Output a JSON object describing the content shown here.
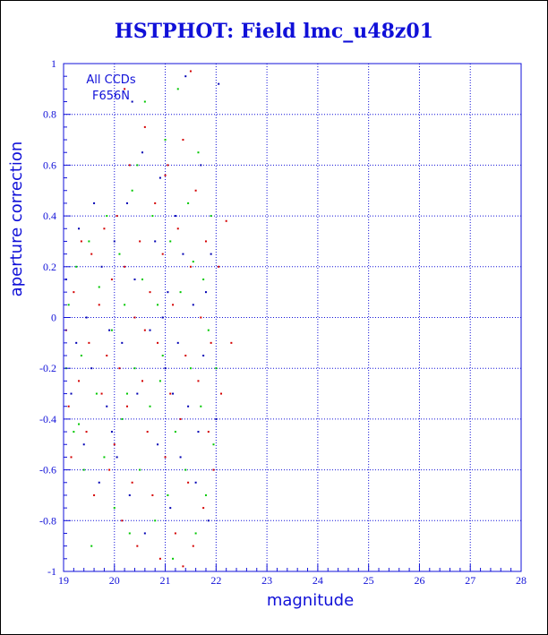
{
  "chart_data": {
    "type": "scatter",
    "title": "HSTPHOT: Field lmc_u48z01",
    "xlabel": "magnitude",
    "ylabel": "aperture correction",
    "xlim": [
      19,
      28
    ],
    "ylim": [
      -1,
      1
    ],
    "xticks": [
      "19",
      "20",
      "21",
      "22",
      "23",
      "24",
      "25",
      "26",
      "27",
      "28"
    ],
    "yticks": [
      "-1",
      "-0.8",
      "-0.6",
      "-0.4",
      "-0.2",
      "0",
      "0.2",
      "0.4",
      "0.6",
      "0.8",
      "1"
    ],
    "annotation": [
      "All CCDs",
      "F656N"
    ],
    "grid": true,
    "colors": {
      "axis": "#1010d8",
      "grid": "#1010d8",
      "background": "#ffffff"
    },
    "series": [
      {
        "color": "#d40000",
        "points": [
          [
            19.05,
            -0.05
          ],
          [
            19.1,
            -0.35
          ],
          [
            19.15,
            -0.55
          ],
          [
            19.2,
            0.1
          ],
          [
            19.3,
            -0.25
          ],
          [
            19.35,
            0.3
          ],
          [
            19.45,
            -0.45
          ],
          [
            19.5,
            -0.1
          ],
          [
            19.55,
            0.25
          ],
          [
            19.6,
            -0.7
          ],
          [
            19.7,
            0.05
          ],
          [
            19.75,
            -0.3
          ],
          [
            19.8,
            0.35
          ],
          [
            19.85,
            -0.15
          ],
          [
            19.9,
            -0.6
          ],
          [
            19.95,
            0.15
          ],
          [
            20.0,
            -0.5
          ],
          [
            20.05,
            0.4
          ],
          [
            20.1,
            -0.2
          ],
          [
            20.15,
            -0.8
          ],
          [
            20.2,
            0.2
          ],
          [
            20.25,
            -0.35
          ],
          [
            20.3,
            0.6
          ],
          [
            20.35,
            -0.65
          ],
          [
            20.4,
            0.0
          ],
          [
            20.45,
            -0.9
          ],
          [
            20.5,
            0.3
          ],
          [
            20.55,
            -0.25
          ],
          [
            20.6,
            0.75
          ],
          [
            20.65,
            -0.45
          ],
          [
            20.7,
            0.1
          ],
          [
            20.75,
            -0.7
          ],
          [
            20.8,
            0.45
          ],
          [
            20.85,
            -0.1
          ],
          [
            20.9,
            -0.95
          ],
          [
            20.95,
            0.25
          ],
          [
            21.0,
            -0.55
          ],
          [
            21.05,
            0.6
          ],
          [
            21.1,
            -0.3
          ],
          [
            21.15,
            0.05
          ],
          [
            21.2,
            -0.85
          ],
          [
            21.25,
            0.35
          ],
          [
            21.3,
            -0.4
          ],
          [
            21.35,
            0.7
          ],
          [
            21.4,
            -0.15
          ],
          [
            21.45,
            -0.65
          ],
          [
            21.5,
            0.2
          ],
          [
            21.55,
            -0.9
          ],
          [
            21.6,
            0.5
          ],
          [
            21.65,
            -0.25
          ],
          [
            21.7,
            0.0
          ],
          [
            21.75,
            -0.75
          ],
          [
            21.8,
            0.3
          ],
          [
            21.85,
            -0.45
          ],
          [
            21.9,
            -0.1
          ],
          [
            21.95,
            -0.6
          ],
          [
            22.05,
            0.2
          ],
          [
            22.1,
            -0.3
          ],
          [
            22.2,
            0.38
          ],
          [
            22.3,
            -0.1
          ],
          [
            20.6,
            -0.05
          ],
          [
            21.35,
            -0.98
          ],
          [
            20.2,
            0.9
          ],
          [
            21.5,
            0.97
          ],
          [
            21.0,
            0.56
          ]
        ]
      },
      {
        "color": "#00c800",
        "points": [
          [
            19.05,
            -0.2
          ],
          [
            19.1,
            0.05
          ],
          [
            19.2,
            -0.45
          ],
          [
            19.25,
            0.2
          ],
          [
            19.35,
            -0.15
          ],
          [
            19.4,
            -0.6
          ],
          [
            19.5,
            0.3
          ],
          [
            19.55,
            -0.9
          ],
          [
            19.65,
            -0.3
          ],
          [
            19.7,
            0.12
          ],
          [
            19.8,
            -0.55
          ],
          [
            19.85,
            0.4
          ],
          [
            19.95,
            -0.05
          ],
          [
            20.0,
            -0.75
          ],
          [
            20.1,
            0.25
          ],
          [
            20.15,
            -0.4
          ],
          [
            20.2,
            0.05
          ],
          [
            20.3,
            -0.85
          ],
          [
            20.35,
            0.5
          ],
          [
            20.4,
            -0.2
          ],
          [
            20.5,
            -0.6
          ],
          [
            20.55,
            0.15
          ],
          [
            20.6,
            0.85
          ],
          [
            20.7,
            -0.35
          ],
          [
            20.75,
            0.4
          ],
          [
            20.8,
            -0.8
          ],
          [
            20.85,
            0.05
          ],
          [
            20.95,
            -0.15
          ],
          [
            21.0,
            0.7
          ],
          [
            21.05,
            -0.7
          ],
          [
            21.1,
            0.3
          ],
          [
            21.2,
            -0.45
          ],
          [
            21.25,
            0.9
          ],
          [
            21.3,
            0.1
          ],
          [
            21.4,
            -0.6
          ],
          [
            21.45,
            0.45
          ],
          [
            21.5,
            -0.2
          ],
          [
            21.6,
            -0.85
          ],
          [
            21.65,
            0.65
          ],
          [
            21.7,
            -0.35
          ],
          [
            21.75,
            0.15
          ],
          [
            21.8,
            -0.7
          ],
          [
            21.85,
            -0.05
          ],
          [
            21.9,
            0.4
          ],
          [
            21.95,
            -0.5
          ],
          [
            22.0,
            -0.2
          ],
          [
            20.9,
            -0.25
          ],
          [
            21.15,
            -0.95
          ],
          [
            20.45,
            0.6
          ],
          [
            19.3,
            -0.42
          ],
          [
            21.55,
            0.22
          ],
          [
            20.25,
            -0.3
          ]
        ]
      },
      {
        "color": "#0000b4",
        "points": [
          [
            19.05,
            0.15
          ],
          [
            19.15,
            -0.3
          ],
          [
            19.25,
            -0.1
          ],
          [
            19.3,
            0.35
          ],
          [
            19.4,
            -0.5
          ],
          [
            19.45,
            0.0
          ],
          [
            19.55,
            -0.2
          ],
          [
            19.6,
            0.45
          ],
          [
            19.7,
            -0.65
          ],
          [
            19.75,
            0.2
          ],
          [
            19.85,
            -0.35
          ],
          [
            19.9,
            -0.05
          ],
          [
            20.0,
            0.3
          ],
          [
            20.05,
            -0.55
          ],
          [
            20.15,
            -0.1
          ],
          [
            20.25,
            0.45
          ],
          [
            20.3,
            -0.7
          ],
          [
            20.4,
            0.15
          ],
          [
            20.45,
            -0.3
          ],
          [
            20.55,
            0.65
          ],
          [
            20.6,
            -0.85
          ],
          [
            20.7,
            -0.05
          ],
          [
            20.8,
            0.3
          ],
          [
            20.85,
            -0.5
          ],
          [
            20.9,
            0.55
          ],
          [
            21.0,
            -0.2
          ],
          [
            21.05,
            0.1
          ],
          [
            21.1,
            -0.75
          ],
          [
            21.2,
            0.4
          ],
          [
            21.25,
            -0.1
          ],
          [
            21.3,
            -0.55
          ],
          [
            21.35,
            0.25
          ],
          [
            21.4,
            0.95
          ],
          [
            21.45,
            -0.35
          ],
          [
            21.55,
            0.05
          ],
          [
            21.6,
            -0.65
          ],
          [
            21.7,
            0.6
          ],
          [
            21.75,
            -0.15
          ],
          [
            21.8,
            0.1
          ],
          [
            21.85,
            -0.8
          ],
          [
            21.9,
            0.25
          ],
          [
            22.0,
            -0.4
          ],
          [
            22.05,
            0.92
          ],
          [
            20.35,
            0.85
          ],
          [
            21.15,
            -0.3
          ],
          [
            20.95,
            0.0
          ],
          [
            19.95,
            -0.45
          ],
          [
            21.65,
            -0.45
          ]
        ]
      }
    ]
  }
}
